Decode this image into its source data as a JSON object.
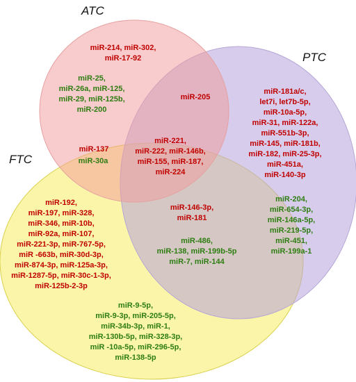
{
  "colors": {
    "up": "#c00000",
    "down": "#2e7d12",
    "atc_fill": "#f4a3a3",
    "ptc_fill": "#c3b3e0",
    "ftc_fill": "#f7ef6e"
  },
  "sets": {
    "atc": "ATC",
    "ptc": "PTC",
    "ftc": "FTC"
  },
  "regions": {
    "atc_only_red": [
      "miR-214, miR-302,",
      "miR-17-92"
    ],
    "atc_only_green": [
      "miR-25,",
      "miR-26a, miR-125,",
      "miR-29, miR-125b,",
      "miR-200"
    ],
    "atc_ptc_red": [
      "miR-205"
    ],
    "ptc_only_red": [
      "miR-181a/c,",
      "let7i, let7b-5p,",
      "miR-10a-5p,",
      "miR-31, miR-122a,",
      "miR-551b-3p,",
      "miR-145, miR-181b,",
      "miR-182, miR-25-3p,",
      "miR-451a,",
      "miR-140-3p"
    ],
    "ptc_only_green": [
      "miR-204,",
      "miR-654-3p,",
      "miR-146a-5p,",
      "miR-219-5p,",
      "miR-451,",
      "miR-199a-1"
    ],
    "atc_ftc_red": [
      "miR-137"
    ],
    "atc_ftc_green": [
      "miR-30a"
    ],
    "all_three_red": [
      "miR-221,",
      "miR-222, miR-146b,",
      "miR-155, miR-187,",
      "miR-224"
    ],
    "ftc_only_red": [
      "miR-192,",
      "miR-197, miR-328,",
      "miR-346, miR-10b,",
      "miR-92a, miR-107,",
      "miR-221-3p, miR-767-5p,",
      "miR -663b, miR-30d-3p,",
      "miR-874-3p, miR-125a-3p,",
      "miR-1287-5p, miR-30c-1-3p,",
      "miR-125b-2-3p"
    ],
    "ftc_ptc_red": [
      "miR-146-3p,",
      "miR-181"
    ],
    "ftc_ptc_green": [
      "miR-486,",
      "miR-138, miR-199b-5p",
      "miR-7, miR-144"
    ],
    "ftc_only_green": [
      "miR-9-5p,",
      "miR-9-3p, miR-205-5p,",
      "miR-34b-3p, miR-1,",
      "miR-130b-5p, miR-328-3p,",
      "miR -10a-5p, miR-296-5p,",
      "miR-138-5p"
    ]
  }
}
